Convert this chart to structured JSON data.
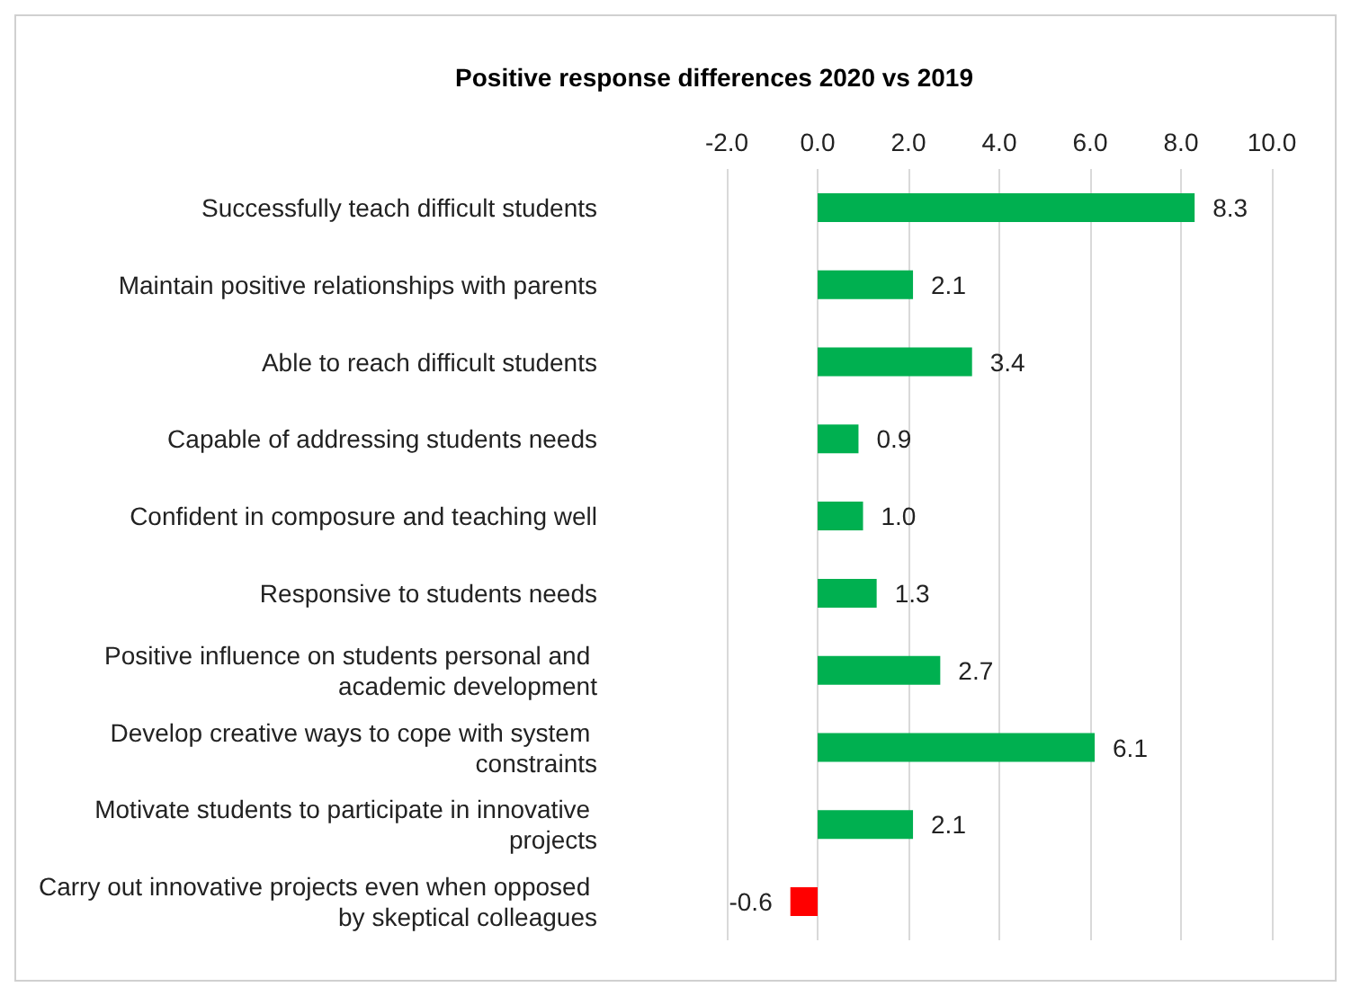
{
  "chart_data": {
    "type": "bar",
    "orientation": "horizontal",
    "title": "Positive response differences 2020 vs 2019",
    "categories": [
      "Successfully teach difficult students",
      "Maintain positive relationships with parents",
      "Able to reach difficult students",
      "Capable of addressing students needs",
      "Confident in composure and teaching well",
      "Responsive to students needs",
      "Positive influence on students personal and academic development",
      "Develop creative ways to cope with system constraints",
      "Motivate students to participate in innovative projects",
      "Carry out innovative projects even when opposed by skeptical colleagues"
    ],
    "values": [
      8.3,
      2.1,
      3.4,
      0.9,
      1.0,
      1.3,
      2.7,
      6.1,
      2.1,
      -0.6
    ],
    "value_labels": [
      "8.3",
      "2.1",
      "3.4",
      "0.9",
      "1.0",
      "1.3",
      "2.7",
      "6.1",
      "2.1",
      "-0.6"
    ],
    "colors": [
      "#00b050",
      "#00b050",
      "#00b050",
      "#00b050",
      "#00b050",
      "#00b050",
      "#00b050",
      "#00b050",
      "#00b050",
      "#ff0000"
    ],
    "xlim": [
      -2,
      10
    ],
    "xticks": [
      {
        "value": -2,
        "label": "-2.0"
      },
      {
        "value": 0,
        "label": "0.0"
      },
      {
        "value": 2,
        "label": "2.0"
      },
      {
        "value": 4,
        "label": "4.0"
      },
      {
        "value": 6,
        "label": "6.0"
      },
      {
        "value": 8,
        "label": "8.0"
      },
      {
        "value": 10,
        "label": "10.0"
      }
    ],
    "grid": "x"
  }
}
